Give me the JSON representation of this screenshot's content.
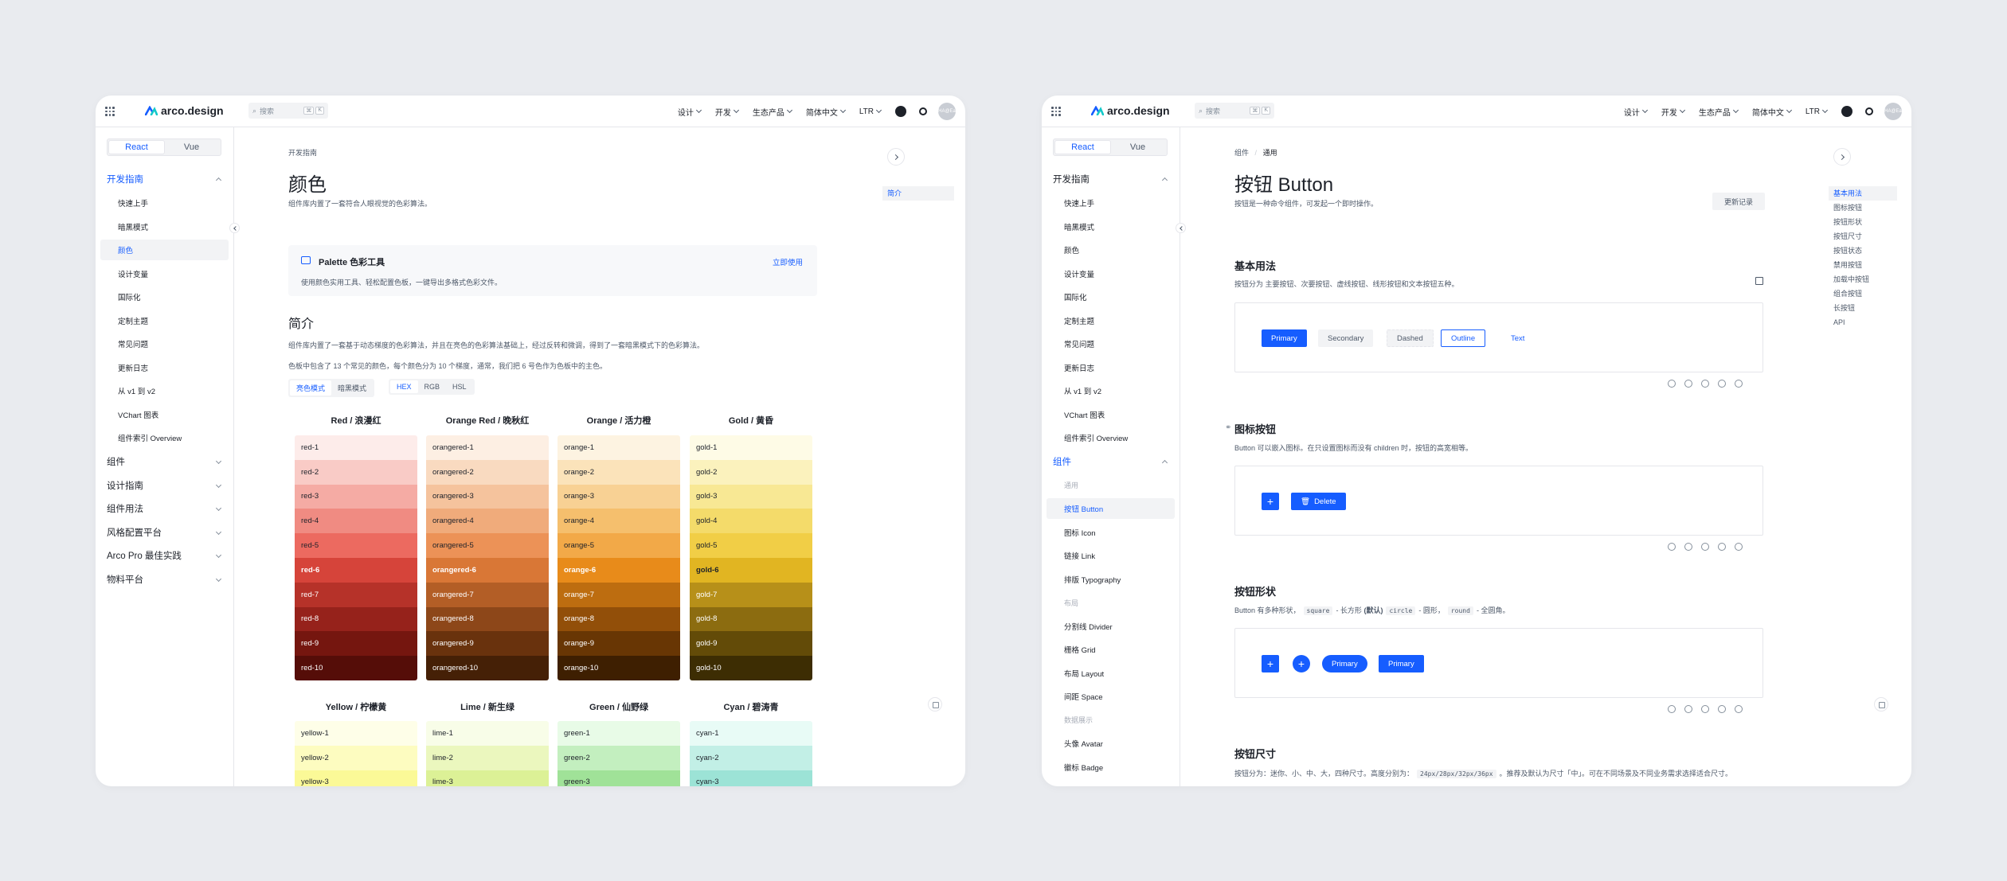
{
  "nav": {
    "logo": "arco.design",
    "search_placeholder": "搜索",
    "search_keys": [
      "⌘",
      "K"
    ],
    "menus": [
      "设计",
      "开发",
      "生态产品",
      "简体中文",
      "LTR"
    ],
    "avatar": "HA@Ea"
  },
  "colors": {
    "primary": "#165dff"
  },
  "frameworks": [
    "React",
    "Vue"
  ],
  "window1": {
    "sidebar": {
      "group_open": "开发指南",
      "items": [
        "快速上手",
        "暗黑模式",
        "颜色",
        "设计变量",
        "国际化",
        "定制主题",
        "常见问题",
        "更新日志",
        "从 v1 到 v2",
        "VChart 图表",
        "组件索引 Overview"
      ],
      "selected": "颜色",
      "groups": [
        "组件",
        "设计指南",
        "组件用法",
        "风格配置平台",
        "Arco Pro 最佳实践",
        "物料平台"
      ]
    },
    "breadcrumb": "开发指南",
    "title": "颜色",
    "subtitle": "组件库内置了一套符合人眼视觉的色彩算法。",
    "palette": {
      "title": "Palette 色彩工具",
      "link": "立即使用",
      "desc": "使用颜色实用工具、轻松配置色板，一键导出多格式色彩文件。"
    },
    "intro_title": "简介",
    "intro_p1": "组件库内置了一套基于动态梯度的色彩算法，并且在亮色的色彩算法基础上，经过反转和微调，得到了一套暗黑模式下的色彩算法。",
    "intro_p2": "色板中包含了 13 个常见的颜色，每个颜色分为 10 个梯度，通常，我们把 6 号色作为色板中的主色。",
    "mode_tabs": [
      "亮色模式",
      "暗黑模式"
    ],
    "format_tabs": [
      "HEX",
      "RGB",
      "HSL"
    ],
    "toc": [
      "简介"
    ],
    "palettes_row1": [
      {
        "name": "Red / 浪漫红",
        "key": "red",
        "colors": [
          "#fdecea",
          "#f9cbc6",
          "#f5aba4",
          "#f08b82",
          "#ec6a60",
          "#d6443a",
          "#b63229",
          "#96221b",
          "#75160f",
          "#550d08"
        ]
      },
      {
        "name": "Orange Red / 晚秋红",
        "key": "orangered",
        "colors": [
          "#fdefe3",
          "#f9dac0",
          "#f5c39d",
          "#f0ab7b",
          "#ec9257",
          "#d97736",
          "#b35e26",
          "#8d4719",
          "#69320d",
          "#452006"
        ]
      },
      {
        "name": "Orange / 活力橙",
        "key": "orange",
        "colors": [
          "#fdf3e1",
          "#fbe3ba",
          "#f8d194",
          "#f5bf6d",
          "#f2a948",
          "#e88b1a",
          "#bd6d10",
          "#924f09",
          "#683604",
          "#3e1f01"
        ]
      },
      {
        "name": "Gold / 黄昏",
        "key": "gold",
        "colors": [
          "#fefbe6",
          "#fbf2bd",
          "#f8e894",
          "#f4db6a",
          "#f1ce46",
          "#e1b522",
          "#b79019",
          "#8c6c10",
          "#634b08",
          "#3d2d03"
        ]
      }
    ],
    "palettes_row2": [
      {
        "name": "Yellow / 柠檬黄",
        "key": "yellow",
        "colors": [
          "#fefee8",
          "#fdfcc0",
          "#fbf997"
        ]
      },
      {
        "name": "Lime / 新生绿",
        "key": "lime",
        "colors": [
          "#f8fde8",
          "#ebf7be",
          "#dcf196"
        ]
      },
      {
        "name": "Green / 仙野绿",
        "key": "green",
        "colors": [
          "#e8fbe7",
          "#c3efbf",
          "#a0e298"
        ]
      },
      {
        "name": "Cyan / 碧涛青",
        "key": "cyan",
        "colors": [
          "#e8fbf6",
          "#c2efe6",
          "#9ce3d6"
        ]
      }
    ]
  },
  "window2": {
    "sidebar": {
      "group_dev": "开发指南",
      "dev_items": [
        "快速上手",
        "暗黑模式",
        "颜色",
        "设计变量",
        "国际化",
        "定制主题",
        "常见问题",
        "更新日志",
        "从 v1 到 v2",
        "VChart 图表",
        "组件索引 Overview"
      ],
      "group_comp": "组件",
      "sub_general": "通用",
      "general_items": [
        "按钮 Button",
        "图标 Icon",
        "链接 Link",
        "排版 Typography"
      ],
      "sub_layout": "布局",
      "layout_items": [
        "分割线 Divider",
        "栅格 Grid",
        "布局 Layout",
        "间距 Space"
      ],
      "sub_data": "数据展示",
      "data_items": [
        "头像 Avatar",
        "徽标 Badge"
      ],
      "selected": "按钮 Button"
    },
    "breadcrumb": [
      "组件",
      "通用"
    ],
    "title": "按钮 Button",
    "subtitle": "按钮是一种命令组件，可发起一个即时操作。",
    "changelog": "更新记录",
    "sections": {
      "basic": {
        "title": "基本用法",
        "desc": "按钮分为 主要按钮、次要按钮、虚线按钮、线形按钮和文本按钮五种。",
        "buttons": [
          "Primary",
          "Secondary",
          "Dashed",
          "Outline",
          "Text"
        ]
      },
      "icon": {
        "title": "图标按钮",
        "desc": "Button 可以嵌入图标。在只设置图标而没有 children 时，按钮的高宽相等。",
        "delete": "Delete"
      },
      "shape": {
        "title": "按钮形状",
        "desc_a": "Button 有多种形状，",
        "code1": "square",
        "desc_b": "- 长方形",
        "bold": "(默认)",
        "code2": "circle",
        "desc_c": "- 圆形，",
        "code3": "round",
        "desc_d": "- 全圆角。",
        "buttons": [
          "Primary",
          "Primary"
        ]
      },
      "size": {
        "title": "按钮尺寸",
        "desc_a": "按钮分为：迷你、小、中、大，四种尺寸。高度分别为：",
        "code": "24px/28px/32px/36px",
        "desc_b": "。推荐及默认为尺寸「中」。可在不同场景及不同业务需求选择适合尺寸。"
      }
    },
    "toc": [
      "基本用法",
      "图标按钮",
      "按钮形状",
      "按钮尺寸",
      "按钮状态",
      "禁用按钮",
      "加载中按钮",
      "组合按钮",
      "长按钮",
      "API"
    ]
  }
}
